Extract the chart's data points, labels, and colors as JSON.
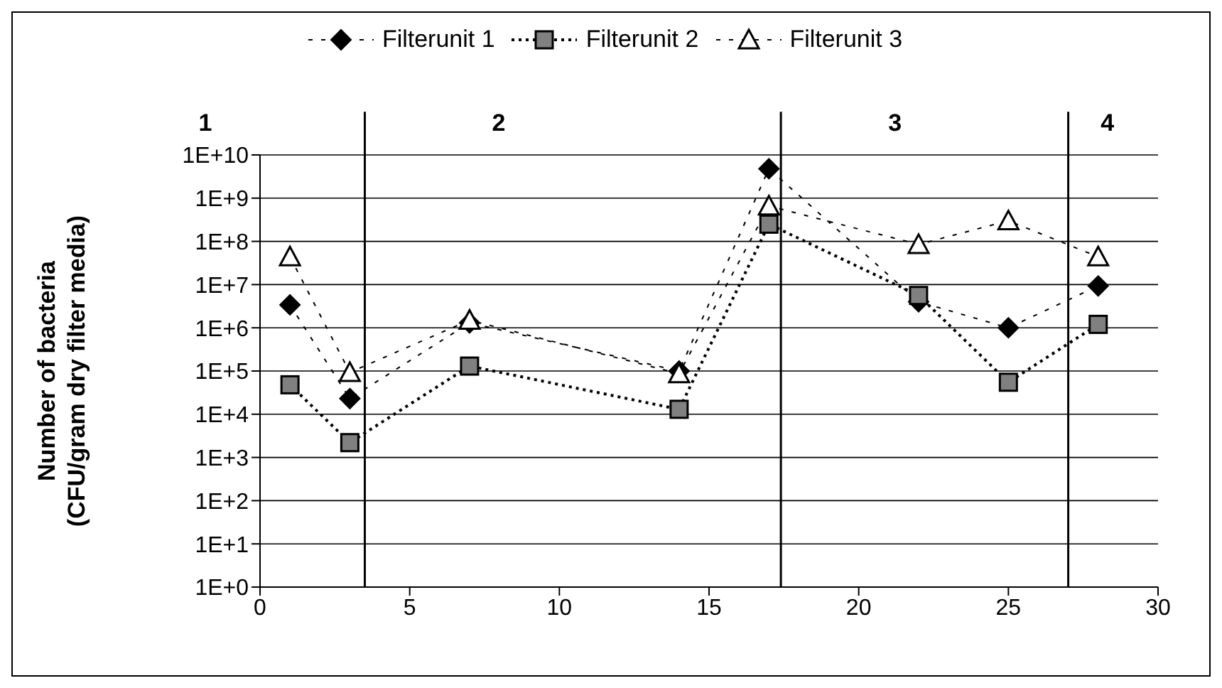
{
  "chart_data": {
    "type": "line",
    "ylabel": "Number of bacteria\n(CFU/gram dry filter media)",
    "x": [
      1,
      3,
      7,
      14,
      17,
      22,
      25,
      28
    ],
    "series": [
      {
        "name": "Filterunit 1",
        "color": "#000000",
        "marker": "diamond",
        "line_style": "dashed",
        "values": [
          3400000,
          23000,
          1300000,
          100000,
          4800000000,
          4000000,
          1000000,
          9300000
        ]
      },
      {
        "name": "Filterunit 2",
        "color": "#808080",
        "marker": "square",
        "line_style": "dotted",
        "values": [
          48000,
          2200,
          130000,
          13000,
          250000000,
          5600000,
          55000,
          1200000
        ]
      },
      {
        "name": "Filterunit 3",
        "color": "#ffffff",
        "marker": "triangle",
        "line_style": "dashed",
        "values": [
          44000000,
          93000,
          1500000,
          87000,
          660000000,
          85000000,
          300000000,
          44000000
        ]
      }
    ],
    "log": "y",
    "xlim": [
      0,
      30
    ],
    "xticks": [
      0,
      5,
      10,
      15,
      20,
      25,
      30
    ],
    "ylim": [
      1,
      10000000000
    ],
    "yticks": [
      {
        "value": 1,
        "label": "1E+0"
      },
      {
        "value": 10,
        "label": "1E+1"
      },
      {
        "value": 100,
        "label": "1E+2"
      },
      {
        "value": 1000,
        "label": "1E+3"
      },
      {
        "value": 10000,
        "label": "1E+4"
      },
      {
        "value": 100000,
        "label": "1E+5"
      },
      {
        "value": 1000000,
        "label": "1E+6"
      },
      {
        "value": 10000000,
        "label": "1E+7"
      },
      {
        "value": 100000000,
        "label": "1E+8"
      },
      {
        "value": 1000000000,
        "label": "1E+9"
      },
      {
        "value": 10000000000,
        "label": "1E+10"
      }
    ],
    "grid": "y",
    "legend": "top",
    "ref_lines": [
      {
        "axis": "x",
        "value": 3.5,
        "color": "#000000"
      },
      {
        "axis": "x",
        "value": 17.4,
        "color": "#000000"
      },
      {
        "axis": "x",
        "value": 27,
        "color": "#000000"
      }
    ],
    "annotations": [
      "1",
      "2",
      "3",
      "4"
    ]
  }
}
